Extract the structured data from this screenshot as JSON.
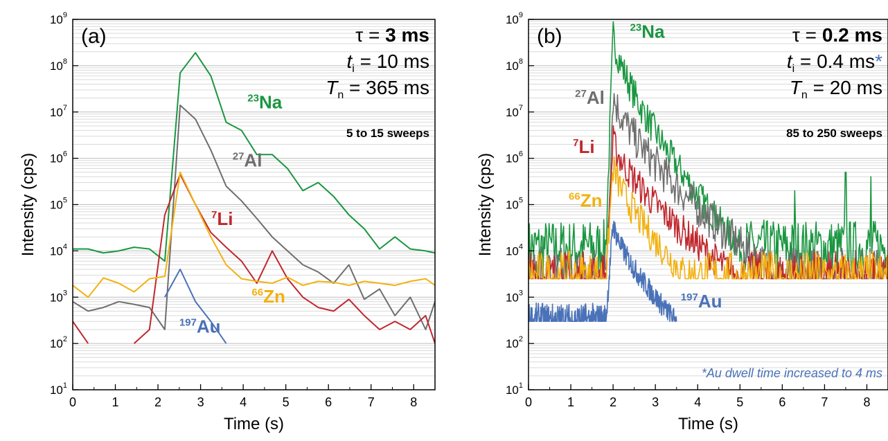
{
  "colors": {
    "Na": "#1a9641",
    "Al": "#6e6e6e",
    "Li": "#c0272d",
    "Zn": "#f2b10f",
    "Au": "#4a72b8",
    "note": "#4a72b8",
    "grid": "#d9d9d9"
  },
  "chart_data": [
    {
      "type": "line",
      "panel_label": "(a)",
      "xlabel": "Time (s)",
      "ylabel": "Intensity (cps)",
      "xlim": [
        0,
        8.5
      ],
      "ylim": [
        10,
        1000000000
      ],
      "yscale": "log",
      "grid": true,
      "x_ticks": [
        "0",
        "1",
        "2",
        "3",
        "4",
        "5",
        "6",
        "7",
        "8"
      ],
      "y_ticks": [
        "10",
        "10",
        "10",
        "10",
        "10",
        "10",
        "10",
        "10",
        "10"
      ],
      "y_tick_exponents": [
        "1",
        "2",
        "3",
        "4",
        "5",
        "6",
        "7",
        "8",
        "9"
      ],
      "annotations": {
        "tau": "τ = 3 ms",
        "ti": "ti = 10 ms",
        "Tn": "Tn = 365 ms",
        "sweeps": "5 to 15 sweeps"
      },
      "series": [
        {
          "name": "Na",
          "mass": "23",
          "key": "Na",
          "x": [
            0,
            0.36,
            0.72,
            1.08,
            1.44,
            1.8,
            2.16,
            2.52,
            2.88,
            3.24,
            3.6,
            3.96,
            4.32,
            4.68,
            5.04,
            5.4,
            5.76,
            6.12,
            6.48,
            6.84,
            7.2,
            7.56,
            7.92,
            8.28,
            8.5
          ],
          "y": [
            11000,
            11000,
            9000,
            10000,
            12000,
            11000,
            6000,
            70000000,
            190000000,
            60000000,
            6000000,
            4000000,
            1200000,
            1200000,
            600000,
            200000,
            300000,
            150000,
            60000,
            30000,
            11000,
            20000,
            11000,
            10000,
            9000
          ]
        },
        {
          "name": "Al",
          "mass": "27",
          "key": "Al",
          "x": [
            0,
            0.36,
            0.72,
            1.08,
            1.44,
            1.8,
            2.16,
            2.52,
            2.88,
            3.24,
            3.6,
            3.96,
            4.32,
            4.68,
            5.04,
            5.4,
            5.76,
            6.12,
            6.48,
            6.84,
            7.2,
            7.56,
            7.92,
            8.28,
            8.5
          ],
          "y": [
            800,
            500,
            600,
            800,
            700,
            600,
            200,
            14000000,
            7000000,
            1500000,
            250000,
            120000,
            50000,
            20000,
            10000,
            5000,
            3500,
            2000,
            5000,
            900,
            1500,
            400,
            1000,
            200,
            800
          ]
        },
        {
          "name": "Li",
          "mass": "7",
          "key": "Li",
          "x": [
            0,
            0.36,
            null,
            1.44,
            1.8,
            2.16,
            2.52,
            2.88,
            3.24,
            3.6,
            3.96,
            4.32,
            4.68,
            5.04,
            5.4,
            5.76,
            6.12,
            6.48,
            6.84,
            7.2,
            7.56,
            7.92,
            8.28,
            8.5
          ],
          "y": [
            300,
            100,
            null,
            100,
            200,
            60000,
            450000,
            100000,
            25000,
            12000,
            6000,
            2000,
            10000,
            2500,
            1000,
            600,
            500,
            900,
            400,
            200,
            300,
            200,
            400,
            100
          ]
        },
        {
          "name": "Zn",
          "mass": "66",
          "key": "Zn",
          "x": [
            0,
            0.36,
            0.72,
            1.08,
            1.44,
            1.8,
            2.16,
            2.52,
            2.88,
            3.24,
            3.6,
            3.96,
            4.32,
            4.68,
            5.04,
            5.4,
            5.76,
            6.12,
            6.48,
            6.84,
            7.2,
            7.56,
            7.92,
            8.28,
            8.5
          ],
          "y": [
            1800,
            1000,
            2600,
            2000,
            1300,
            2500,
            2800,
            500000,
            100000,
            20000,
            5000,
            2500,
            2200,
            2000,
            2700,
            1800,
            2200,
            2100,
            1800,
            2200,
            2000,
            1800,
            2200,
            2500,
            1800
          ]
        },
        {
          "name": "Au",
          "mass": "197",
          "key": "Au",
          "x": [
            2.16,
            2.52,
            2.88,
            3.24,
            3.6
          ],
          "y": [
            1000,
            4000,
            800,
            300,
            100
          ]
        }
      ],
      "labels": [
        {
          "key": "Na",
          "mass": "23",
          "sym": "Na",
          "x": 4.1,
          "y": 12000000
        },
        {
          "key": "Al",
          "mass": "27",
          "sym": "Al",
          "x": 3.75,
          "y": 660000
        },
        {
          "key": "Li",
          "mass": "7",
          "sym": "Li",
          "x": 3.25,
          "y": 36000
        },
        {
          "key": "Zn",
          "mass": "66",
          "sym": "Zn",
          "x": 4.2,
          "y": 760
        },
        {
          "key": "Au",
          "mass": "197",
          "sym": "Au",
          "x": 2.5,
          "y": 170
        }
      ]
    },
    {
      "type": "line",
      "panel_label": "(b)",
      "xlabel": "Time (s)",
      "ylabel": "Intensity (cps)",
      "xlim": [
        0,
        8.5
      ],
      "ylim": [
        10,
        1000000000
      ],
      "yscale": "log",
      "grid": true,
      "x_ticks": [
        "0",
        "1",
        "2",
        "3",
        "4",
        "5",
        "6",
        "7",
        "8"
      ],
      "y_ticks": [
        "10",
        "10",
        "10",
        "10",
        "10",
        "10",
        "10",
        "10",
        "10"
      ],
      "y_tick_exponents": [
        "1",
        "2",
        "3",
        "4",
        "5",
        "6",
        "7",
        "8",
        "9"
      ],
      "annotations": {
        "tau": "τ = 0.2 ms",
        "ti": "ti = 0.4 ms*",
        "Tn": "Tn = 20 ms",
        "sweeps": "85 to 250 sweeps",
        "note": "*Au dwell time increased to 4 ms"
      },
      "series": [
        {
          "name": "Na",
          "mass": "23",
          "key": "Na",
          "envelope": {
            "baseline": 12000,
            "noise_decades": 0.6,
            "rise_x": 1.83,
            "peak_x": 2.0,
            "peak_y": 500000000,
            "decay_to_x": 5.0,
            "end_x": 8.5,
            "spikes": [
              [
                7.5,
                500000
              ],
              [
                8.1,
                400000
              ],
              [
                6.3,
                200000
              ]
            ]
          }
        },
        {
          "name": "Al",
          "mass": "27",
          "key": "Al",
          "envelope": {
            "baseline": 2500,
            "noise_decades": 0.7,
            "rise_x": 1.83,
            "peak_x": 2.0,
            "peak_y": 25000000,
            "decay_to_x": 6.0,
            "end_x": 8.5,
            "spikes": []
          }
        },
        {
          "name": "Li",
          "mass": "7",
          "key": "Li",
          "envelope": {
            "baseline": 2500,
            "noise_decades": 0.6,
            "rise_x": 1.83,
            "peak_x": 2.0,
            "peak_y": 2500000,
            "decay_to_x": 5.0,
            "end_x": 8.5,
            "spikes": []
          }
        },
        {
          "name": "Zn",
          "mass": "66",
          "key": "Zn",
          "envelope": {
            "baseline": 2500,
            "noise_decades": 0.6,
            "rise_x": 1.83,
            "peak_x": 2.0,
            "peak_y": 700000,
            "decay_to_x": 3.8,
            "end_x": 8.5,
            "spikes": []
          }
        },
        {
          "name": "Au",
          "mass": "197",
          "key": "Au",
          "envelope": {
            "baseline": 300,
            "noise_decades": 0.4,
            "rise_x": 1.83,
            "peak_x": 2.0,
            "peak_y": 40000,
            "decay_to_x": 3.5,
            "end_x": 3.5,
            "spikes": []
          }
        }
      ],
      "labels": [
        {
          "key": "Na",
          "mass": "23",
          "sym": "Na",
          "x": 2.4,
          "y": 400000000
        },
        {
          "key": "Al",
          "mass": "27",
          "sym": "Al",
          "x": 1.1,
          "y": 15000000
        },
        {
          "key": "Li",
          "mass": "7",
          "sym": "Li",
          "x": 1.05,
          "y": 1300000
        },
        {
          "key": "Zn",
          "mass": "66",
          "sym": "Zn",
          "x": 0.95,
          "y": 90000
        },
        {
          "key": "Au",
          "mass": "197",
          "sym": "Au",
          "x": 3.6,
          "y": 600
        }
      ]
    }
  ]
}
